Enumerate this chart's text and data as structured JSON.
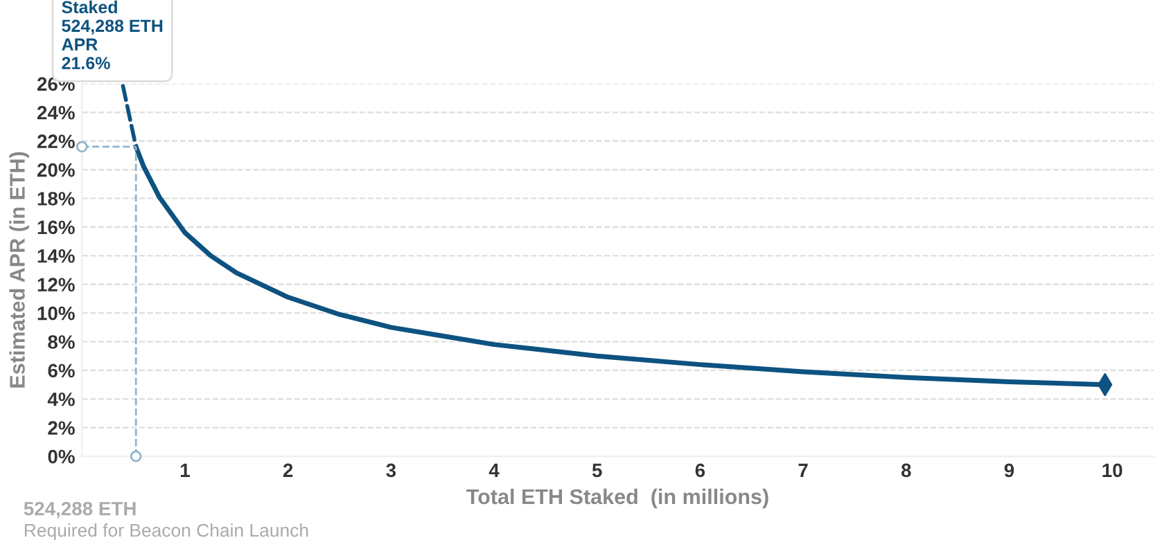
{
  "chart_data": {
    "type": "line",
    "xlabel": "Total ETH Staked  (in millions)",
    "ylabel": "Estimated APR (in ETH)",
    "series": [
      {
        "color": "#0d5280",
        "x": [
          0.524,
          0.6,
          0.75,
          1,
          1.25,
          1.5,
          2,
          2.5,
          3,
          3.5,
          4,
          5,
          6,
          7,
          8,
          9,
          9.93
        ],
        "values": [
          21.6,
          20.2,
          18.1,
          15.6,
          14.0,
          12.8,
          11.1,
          9.9,
          9.0,
          8.4,
          7.8,
          7.0,
          6.4,
          5.9,
          5.5,
          5.2,
          5.0
        ]
      }
    ],
    "xlim": [
      0,
      10.4
    ],
    "ylim": [
      0,
      26
    ],
    "xticks": [
      1,
      2,
      3,
      4,
      5,
      6,
      7,
      8,
      9,
      10
    ],
    "yticks": [
      {
        "value": 0,
        "label": "0%"
      },
      {
        "value": 2,
        "label": "2%"
      },
      {
        "value": 4,
        "label": "4%"
      },
      {
        "value": 6,
        "label": "6%"
      },
      {
        "value": 8,
        "label": "8%"
      },
      {
        "value": 10,
        "label": "10%"
      },
      {
        "value": 12,
        "label": "12%"
      },
      {
        "value": 14,
        "label": "14%"
      },
      {
        "value": 16,
        "label": "16%"
      },
      {
        "value": 18,
        "label": "18%"
      },
      {
        "value": 20,
        "label": "20%"
      },
      {
        "value": 22,
        "label": "22%"
      },
      {
        "value": 24,
        "label": "24%"
      },
      {
        "value": 26,
        "label": "26%"
      }
    ],
    "grid": "y",
    "ref_lines": [
      {
        "axis": "x",
        "value": 0.524,
        "color": "#8fb4cc",
        "line_style": "dashed"
      }
    ],
    "annotations": [
      {
        "text": "Staked\n524,288 ETH\nAPR\n21.6%",
        "x": 0.524,
        "y": 21.6
      },
      "524,288 ETH",
      "Required for Beacon Chain Launch"
    ]
  }
}
